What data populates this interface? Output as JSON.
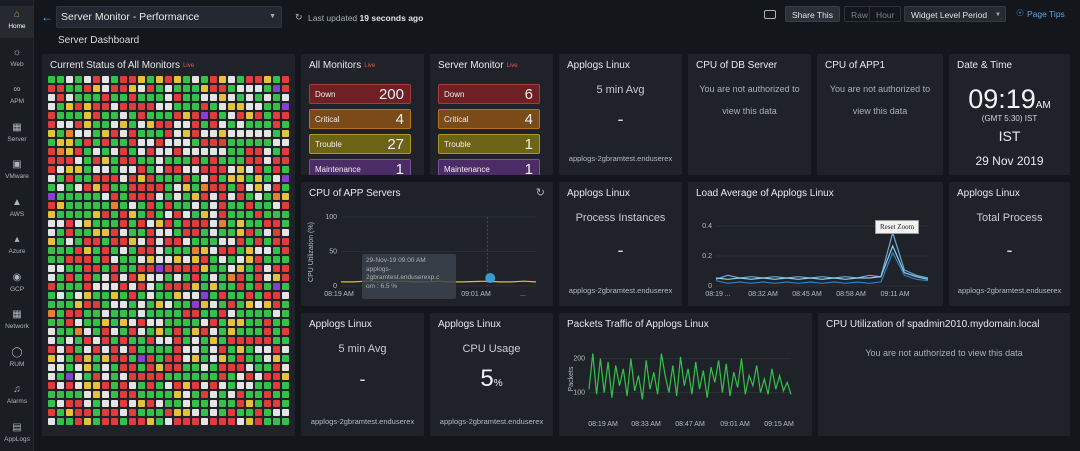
{
  "sidebar": [
    {
      "label": "Home",
      "icon": "home-icon"
    },
    {
      "label": "Web",
      "icon": "globe-icon"
    },
    {
      "label": "APM",
      "icon": "binoculars-icon"
    },
    {
      "label": "Server",
      "icon": "server-icon"
    },
    {
      "label": "VMware",
      "icon": "vmware-icon"
    },
    {
      "label": "AWS",
      "icon": "aws-icon"
    },
    {
      "label": "Azure",
      "icon": "azure-icon"
    },
    {
      "label": "GCP",
      "icon": "gcp-icon"
    },
    {
      "label": "Network",
      "icon": "network-icon"
    },
    {
      "label": "RUM",
      "icon": "rum-icon"
    },
    {
      "label": "Alarms",
      "icon": "bell-icon"
    },
    {
      "label": "AppLogs",
      "icon": "applogs-icon"
    }
  ],
  "header": {
    "monitor_select": "Server Monitor - Performance",
    "subtitle": "Server Dashboard",
    "last_updated_prefix": "Last updated",
    "last_updated_value": "19 seconds ago",
    "share": "Share This",
    "raw": "Raw",
    "hour": "Hour",
    "period": "Widget Level Period",
    "tips": "Page Tips"
  },
  "colors": {
    "green": "#35c04a",
    "red": "#e23b3b",
    "yellow": "#e6c23a",
    "white": "#e4e4e4",
    "purple": "#8a3fd0",
    "orange": "#e5832a"
  },
  "status_grid": {
    "title": "Current Status of All Monitors",
    "live": "Live"
  },
  "all_monitors": {
    "title": "All Monitors",
    "live": "Live",
    "rows": [
      {
        "label": "Down",
        "count": "200"
      },
      {
        "label": "Critical",
        "count": "4"
      },
      {
        "label": "Trouble",
        "count": "27"
      },
      {
        "label": "Maintenance",
        "count": "1"
      }
    ]
  },
  "server_monitor": {
    "title": "Server Monitor",
    "live": "Live",
    "rows": [
      {
        "label": "Down",
        "count": "6"
      },
      {
        "label": "Critical",
        "count": "4"
      },
      {
        "label": "Trouble",
        "count": "1"
      },
      {
        "label": "Maintenance",
        "count": "1"
      }
    ]
  },
  "applogs1": {
    "title": "Applogs Linux",
    "metric": "5 min Avg",
    "value": "-",
    "host": "applogs-2gbramtest.enduserex"
  },
  "cpu_db": {
    "title": "CPU of DB Server",
    "msg1": "You are not authorized to",
    "msg2": "view this data"
  },
  "cpu_app1": {
    "title": "CPU of APP1",
    "msg1": "You are not authorized to",
    "msg2": "view this data"
  },
  "datetime": {
    "title": "Date & Time",
    "time": "09:19",
    "ampm": "AM",
    "tz": "(GMT 5:30) IST",
    "zone": "IST",
    "date": "29 Nov 2019"
  },
  "cpu_app_servers": {
    "title": "CPU of APP Servers",
    "ylabel": "CPU Utilization (%)",
    "yticks": [
      "100",
      "50",
      "0"
    ],
    "xticks": [
      "08:19 AM",
      "09:01 AM",
      "..."
    ],
    "tooltip": {
      "line1": "29-Nov-19 09:00 AM",
      "line2": "applogs-",
      "line3": "2gbramtest.enduserexp.c",
      "line4": "om : 6.5 %"
    }
  },
  "process_inst": {
    "title": "Applogs Linux",
    "metric": "Process Instances",
    "value": "-",
    "host": "applogs-2gbramtest.enduserex"
  },
  "load_avg": {
    "title": "Load Average of Applogs Linux",
    "reset": "Reset Zoom",
    "yticks": [
      "0.4",
      "0.2",
      "0"
    ],
    "xticks": [
      "08:19 ...",
      "08:32 AM",
      "08:45 AM",
      "08:58 AM",
      "09:11 AM"
    ]
  },
  "total_proc": {
    "title": "Applogs Linux",
    "metric": "Total Process",
    "value": "-",
    "host": "applogs-2gbramtest.enduserex"
  },
  "applogs_avg": {
    "title": "Applogs Linux",
    "metric": "5 min Avg",
    "value": "-",
    "host": "applogs-2gbramtest.enduserex"
  },
  "cpu_usage": {
    "title": "Applogs Linux",
    "metric": "CPU Usage",
    "value": "5",
    "unit": "%",
    "host": "applogs-2gbramtest.enduserex"
  },
  "packets": {
    "title": "Packets Traffic of Applogs Linux",
    "ylabel": "Packets",
    "yticks": [
      "200",
      "100"
    ],
    "xticks": [
      "08:19 AM",
      "08:33 AM",
      "08:47 AM",
      "09:01 AM",
      "09:15 AM"
    ]
  },
  "cpu_spadmin": {
    "title": "CPU Utilization of spadmin2010.mydomain.local",
    "msg": "You are not authorized to view this data"
  },
  "chart_data": [
    {
      "type": "line",
      "title": "Packets Traffic of Applogs Linux",
      "ylabel": "Packets",
      "xticks": [
        "08:19 AM",
        "08:33 AM",
        "08:47 AM",
        "09:01 AM",
        "09:15 AM"
      ],
      "ylim": [
        40,
        240
      ],
      "series": [
        {
          "values": [
            110,
            215,
            95,
            200,
            100,
            190,
            85,
            180,
            120,
            170,
            90,
            200,
            105,
            150,
            80,
            195,
            110,
            160,
            95,
            215,
            150,
            100,
            180,
            90,
            205,
            120,
            170,
            95,
            190,
            110,
            165,
            85,
            175,
            130,
            195,
            100,
            185,
            90,
            160,
            115,
            200,
            95,
            150,
            120,
            180,
            100,
            140,
            95,
            170,
            110,
            150,
            105,
            130,
            95
          ]
        }
      ]
    },
    {
      "type": "line",
      "title": "Load Average of Applogs Linux",
      "xticks": [
        "08:19 ...",
        "08:32 AM",
        "08:45 AM",
        "08:58 AM",
        "09:11 AM"
      ],
      "ylim": [
        0,
        0.45
      ],
      "series": [
        {
          "color": "#6aa8d8",
          "values": [
            0.05,
            0.08,
            0.06,
            0.07,
            0.06,
            0.07,
            0.06,
            0.07,
            0.06,
            0.07,
            0.06,
            0.07,
            0.06,
            0.08,
            0.07,
            0.4,
            0.12,
            0.08,
            0.06
          ]
        },
        {
          "color": "#2f7fc1",
          "values": [
            0.04,
            0.02,
            0.03,
            0.02,
            0.03,
            0.02,
            0.03,
            0.02,
            0.03,
            0.02,
            0.03,
            0.02,
            0.03,
            0.02,
            0.03,
            0.25,
            0.08,
            0.05,
            0.04
          ]
        },
        {
          "color": "#8fd0e8",
          "values": [
            0.06,
            0.05,
            0.06,
            0.05,
            0.06,
            0.05,
            0.06,
            0.05,
            0.06,
            0.05,
            0.06,
            0.05,
            0.06,
            0.06,
            0.07,
            0.3,
            0.1,
            0.07,
            0.05
          ]
        }
      ]
    },
    {
      "type": "line",
      "title": "CPU of APP Servers",
      "ylabel": "CPU Utilization (%)",
      "xticks": [
        "08:19 AM",
        "09:01 AM",
        "..."
      ],
      "ylim": [
        0,
        100
      ],
      "series": [
        {
          "color": "#e0c030",
          "values": [
            6,
            6,
            7,
            6,
            6,
            7,
            6,
            6,
            7,
            6,
            6,
            6.5,
            7,
            6,
            6,
            7,
            6
          ]
        }
      ]
    }
  ]
}
